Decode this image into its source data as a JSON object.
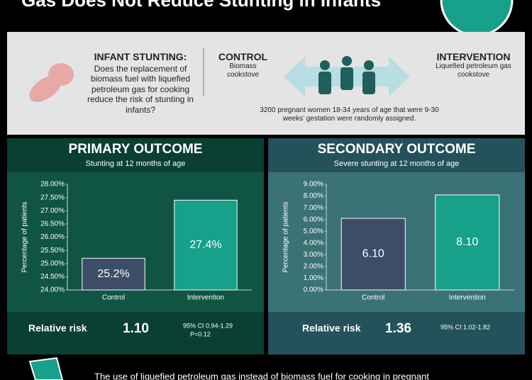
{
  "header": {
    "title": "Gas Does Not Reduce Stunting in Infants"
  },
  "intro": {
    "heading": "INFANT STUNTING:",
    "question": "Does the replacement of biomass fuel with liquefied petroleum gas for cooking reduce the risk of stunting in infants?",
    "control_heading": "CONTROL",
    "control_text": "Biomass cookstove",
    "intervention_heading": "INTERVENTION",
    "intervention_text": "Liquefied petroleum gas cookstove",
    "design": "3200 pregnant women 18-34 years of age that were 9-30 weeks’ gestation were randomly assigned."
  },
  "chart_data": [
    {
      "type": "bar",
      "title": "PRIMARY OUTCOME",
      "subtitle": "Stunting at 12 months of age",
      "y_label": "Percentage of patients",
      "categories": [
        "Control",
        "Intervention"
      ],
      "values": [
        25.2,
        27.4
      ],
      "value_labels": [
        "25.2%",
        "27.4%"
      ],
      "colors": [
        "#3d4d68",
        "#17a08a"
      ],
      "ylim": [
        24,
        28
      ],
      "yticks": [
        {
          "value": 24,
          "label": "24.00%"
        },
        {
          "value": 24.5,
          "label": "24.50%"
        },
        {
          "value": 25,
          "label": "25.00%"
        },
        {
          "value": 25.5,
          "label": "25.50%"
        },
        {
          "value": 26,
          "label": "26.00%"
        },
        {
          "value": 26.5,
          "label": "26.50%"
        },
        {
          "value": 27,
          "label": "27.00%"
        },
        {
          "value": 27.5,
          "label": "27.50%"
        },
        {
          "value": 28,
          "label": "28.00%"
        }
      ],
      "relative_risk_label": "Relative risk",
      "relative_risk": "1.10",
      "ci": "95% CI 0.94-1.29",
      "p": "P=0.12"
    },
    {
      "type": "bar",
      "title": "SECONDARY OUTCOME",
      "subtitle": "Severe stunting at 12 months of age",
      "y_label": "Percentage of patients",
      "categories": [
        "Control",
        "Intervention"
      ],
      "values": [
        6.1,
        8.1
      ],
      "value_labels": [
        "6.10",
        "8.10"
      ],
      "colors": [
        "#3d4d68",
        "#17a08a"
      ],
      "ylim": [
        0,
        9
      ],
      "yticks": [
        {
          "value": 0,
          "label": "0.00%"
        },
        {
          "value": 1,
          "label": "1.00%"
        },
        {
          "value": 2,
          "label": "2.00%"
        },
        {
          "value": 3,
          "label": "3.00%"
        },
        {
          "value": 4,
          "label": "4.00%"
        },
        {
          "value": 5,
          "label": "5.00%"
        },
        {
          "value": 6,
          "label": "6.00%"
        },
        {
          "value": 7,
          "label": "7.00%"
        },
        {
          "value": 8,
          "label": "8.00%"
        },
        {
          "value": 9,
          "label": "9.00%"
        }
      ],
      "relative_risk_label": "Relative risk",
      "relative_risk": "1.36",
      "ci": "95% CI 1.02-1.82"
    }
  ],
  "footer": {
    "text": "The use of liquefied petroleum gas instead of biomass fuel for cooking in pregnant"
  }
}
